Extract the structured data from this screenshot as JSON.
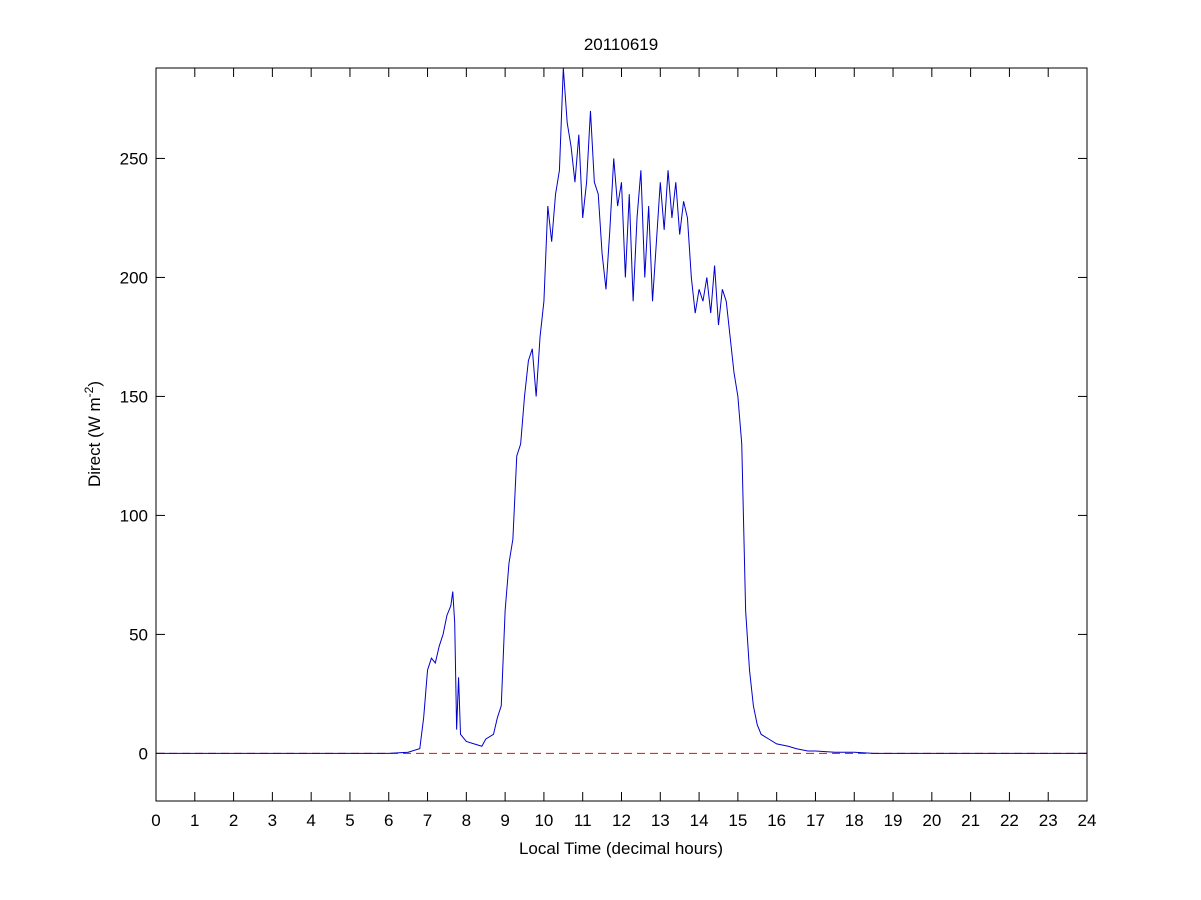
{
  "chart_data": {
    "type": "line",
    "title": "20110619",
    "xlabel": "Local Time (decimal hours)",
    "ylabel": [
      "Direct (W m",
      "-2",
      ")"
    ],
    "xlim": [
      0,
      24
    ],
    "xticks": [
      0,
      1,
      2,
      3,
      4,
      5,
      6,
      7,
      8,
      9,
      10,
      11,
      12,
      13,
      14,
      15,
      16,
      17,
      18,
      19,
      20,
      21,
      22,
      23,
      24
    ],
    "ylim": [
      -20,
      288
    ],
    "yticks": [
      0,
      50,
      100,
      150,
      200,
      250
    ],
    "hline": {
      "y": 0,
      "color": "#ff0000",
      "dashed": true
    },
    "series": [
      {
        "color": "#0000cc",
        "x": [
          0,
          3,
          6,
          6.5,
          6.8,
          6.9,
          7.0,
          7.1,
          7.2,
          7.3,
          7.4,
          7.5,
          7.6,
          7.65,
          7.7,
          7.75,
          7.8,
          7.85,
          8.0,
          8.2,
          8.4,
          8.5,
          8.7,
          8.8,
          8.9,
          9.0,
          9.1,
          9.2,
          9.3,
          9.4,
          9.5,
          9.6,
          9.7,
          9.8,
          9.9,
          10.0,
          10.1,
          10.2,
          10.3,
          10.4,
          10.5,
          10.6,
          10.7,
          10.8,
          10.9,
          11.0,
          11.1,
          11.2,
          11.3,
          11.4,
          11.5,
          11.6,
          11.7,
          11.8,
          11.9,
          12.0,
          12.1,
          12.2,
          12.3,
          12.4,
          12.5,
          12.6,
          12.7,
          12.8,
          12.9,
          13.0,
          13.1,
          13.2,
          13.3,
          13.4,
          13.5,
          13.6,
          13.7,
          13.8,
          13.9,
          14.0,
          14.1,
          14.2,
          14.3,
          14.4,
          14.5,
          14.6,
          14.7,
          14.8,
          14.9,
          15.0,
          15.1,
          15.2,
          15.3,
          15.4,
          15.5,
          15.6,
          15.8,
          16.0,
          16.3,
          16.5,
          16.8,
          17.0,
          17.5,
          18.0,
          18.5,
          24
        ],
        "values": [
          0,
          0,
          0,
          0.5,
          2,
          15,
          35,
          40,
          38,
          45,
          50,
          58,
          62,
          68,
          55,
          10,
          32,
          8,
          5,
          4,
          3,
          6,
          8,
          15,
          20,
          60,
          80,
          90,
          125,
          130,
          150,
          165,
          170,
          150,
          175,
          190,
          230,
          215,
          235,
          245,
          288,
          265,
          255,
          240,
          260,
          225,
          240,
          270,
          240,
          235,
          210,
          195,
          220,
          250,
          230,
          240,
          200,
          235,
          190,
          225,
          245,
          200,
          230,
          190,
          215,
          240,
          220,
          245,
          225,
          240,
          218,
          232,
          225,
          200,
          185,
          195,
          190,
          200,
          185,
          205,
          180,
          195,
          190,
          175,
          160,
          150,
          130,
          60,
          35,
          20,
          12,
          8,
          6,
          4,
          3,
          2,
          1,
          1,
          0.5,
          0.5,
          0,
          0
        ]
      }
    ]
  }
}
